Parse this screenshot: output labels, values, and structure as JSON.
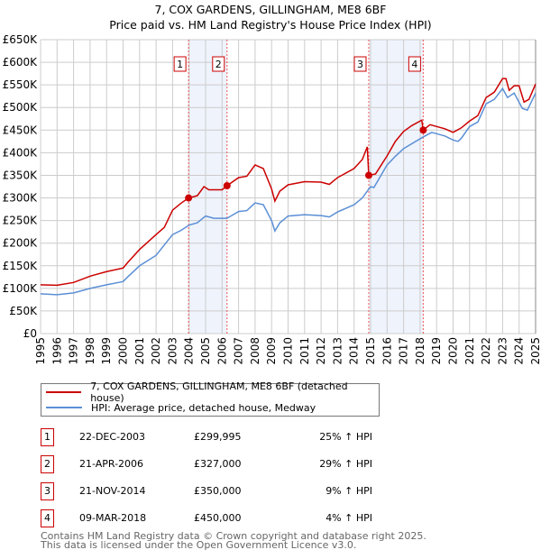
{
  "title": "7, COX GARDENS, GILLINGHAM, ME8 6BF",
  "subtitle": "Price paid vs. HM Land Registry's House Price Index (HPI)",
  "colors": {
    "property": "#cc0000",
    "hpi": "#5b8fd6",
    "shade": "#eef3fc"
  },
  "chart_data": {
    "type": "line",
    "title": "7, COX GARDENS, GILLINGHAM, ME8 6BF",
    "subtitle": "Price paid vs. HM Land Registry's House Price Index (HPI)",
    "xlim": [
      1995,
      2025
    ],
    "ylim": [
      0,
      650000
    ],
    "grid": true,
    "y_ticks": [
      "£0",
      "£50K",
      "£100K",
      "£150K",
      "£200K",
      "£250K",
      "£300K",
      "£350K",
      "£400K",
      "£450K",
      "£500K",
      "£550K",
      "£600K",
      "£650K"
    ],
    "x_ticks": [
      "1995",
      "1996",
      "1997",
      "1998",
      "1999",
      "2000",
      "2001",
      "2002",
      "2003",
      "2004",
      "2005",
      "2006",
      "2007",
      "2008",
      "2009",
      "2010",
      "2011",
      "2012",
      "2013",
      "2014",
      "2015",
      "2016",
      "2017",
      "2018",
      "2019",
      "2020",
      "2021",
      "2022",
      "2023",
      "2024",
      "2025"
    ],
    "series": [
      {
        "name": "7, COX GARDENS, GILLINGHAM, ME8 6BF (detached house)",
        "x": [
          1995,
          1996,
          1997,
          1998,
          1999,
          2000,
          2000.3,
          2001,
          2002,
          2002.5,
          2003,
          2003.5,
          2003.97,
          2004.5,
          2004.9,
          2005.2,
          2006,
          2006.3,
          2007,
          2007.5,
          2008,
          2008.5,
          2009,
          2009.2,
          2009.5,
          2010,
          2011,
          2012,
          2012.5,
          2013,
          2014,
          2014.5,
          2014.8,
          2014.89,
          2015.3,
          2016,
          2016.5,
          2017,
          2017.5,
          2018.1,
          2018.19,
          2018.6,
          2019,
          2019.5,
          2020,
          2020.5,
          2021,
          2021.5,
          2022,
          2022.5,
          2023,
          2023.2,
          2023.4,
          2023.7,
          2024,
          2024.3,
          2024.6,
          2025
        ],
        "y": [
          108000,
          107000,
          113000,
          127000,
          137000,
          145000,
          158000,
          186000,
          219000,
          235000,
          273000,
          288000,
          299995,
          305000,
          325000,
          318000,
          318000,
          327000,
          345000,
          348000,
          373000,
          365000,
          320000,
          293000,
          315000,
          329000,
          336000,
          335000,
          330000,
          345000,
          365000,
          385000,
          413000,
          350000,
          353000,
          393000,
          425000,
          447000,
          460000,
          472000,
          450000,
          462000,
          458000,
          453000,
          445000,
          455000,
          470000,
          482000,
          522000,
          534000,
          564000,
          564000,
          538000,
          548000,
          548000,
          512000,
          518000,
          552000
        ]
      },
      {
        "name": "HPI: Average price, detached house, Medway",
        "x": [
          1995,
          1996,
          1997,
          1998,
          1999,
          2000,
          2000.3,
          2001,
          2002,
          2003,
          2003.5,
          2004,
          2004.5,
          2005,
          2005.5,
          2006,
          2006.3,
          2007,
          2007.5,
          2008,
          2008.5,
          2009,
          2009.2,
          2009.5,
          2010,
          2011,
          2012,
          2012.5,
          2013,
          2014,
          2014.5,
          2015,
          2015.2,
          2016,
          2016.5,
          2017,
          2017.5,
          2018.2,
          2018.7,
          2019,
          2019.5,
          2020,
          2020.3,
          2020.5,
          2021,
          2021.5,
          2022,
          2022.5,
          2023,
          2023.3,
          2023.7,
          2024.2,
          2024.5,
          2025
        ],
        "y": [
          88000,
          86000,
          90000,
          100000,
          108000,
          115000,
          126000,
          150000,
          173000,
          219000,
          228000,
          240000,
          245000,
          260000,
          255000,
          255000,
          255000,
          270000,
          272000,
          289000,
          285000,
          250000,
          227000,
          245000,
          260000,
          263000,
          261000,
          258000,
          269000,
          285000,
          300000,
          325000,
          323000,
          373000,
          392000,
          409000,
          420000,
          435000,
          445000,
          442000,
          437000,
          428000,
          425000,
          432000,
          458000,
          468000,
          508000,
          518000,
          542000,
          522000,
          532000,
          498000,
          494000,
          532000
        ]
      }
    ],
    "sales": [
      {
        "label": "1",
        "x": 2003.97,
        "y": 299995
      },
      {
        "label": "2",
        "x": 2006.3,
        "y": 327000
      },
      {
        "label": "3",
        "x": 2014.89,
        "y": 350000
      },
      {
        "label": "4",
        "x": 2018.19,
        "y": 450000
      }
    ],
    "shaded_ranges": [
      [
        2003.97,
        2006.3
      ],
      [
        2014.89,
        2018.19
      ]
    ]
  },
  "legend": {
    "property": "7, COX GARDENS, GILLINGHAM, ME8 6BF (detached house)",
    "hpi": "HPI: Average price, detached house, Medway"
  },
  "transactions": [
    {
      "num": "1",
      "date": "22-DEC-2003",
      "price": "£299,995",
      "hpi": "25% ↑ HPI"
    },
    {
      "num": "2",
      "date": "21-APR-2006",
      "price": "£327,000",
      "hpi": "29% ↑ HPI"
    },
    {
      "num": "3",
      "date": "21-NOV-2014",
      "price": "£350,000",
      "hpi": "9% ↑ HPI"
    },
    {
      "num": "4",
      "date": "09-MAR-2018",
      "price": "£450,000",
      "hpi": "4% ↑ HPI"
    }
  ],
  "footer": {
    "line1": "Contains HM Land Registry data © Crown copyright and database right 2025.",
    "line2": "This data is licensed under the Open Government Licence v3.0."
  }
}
